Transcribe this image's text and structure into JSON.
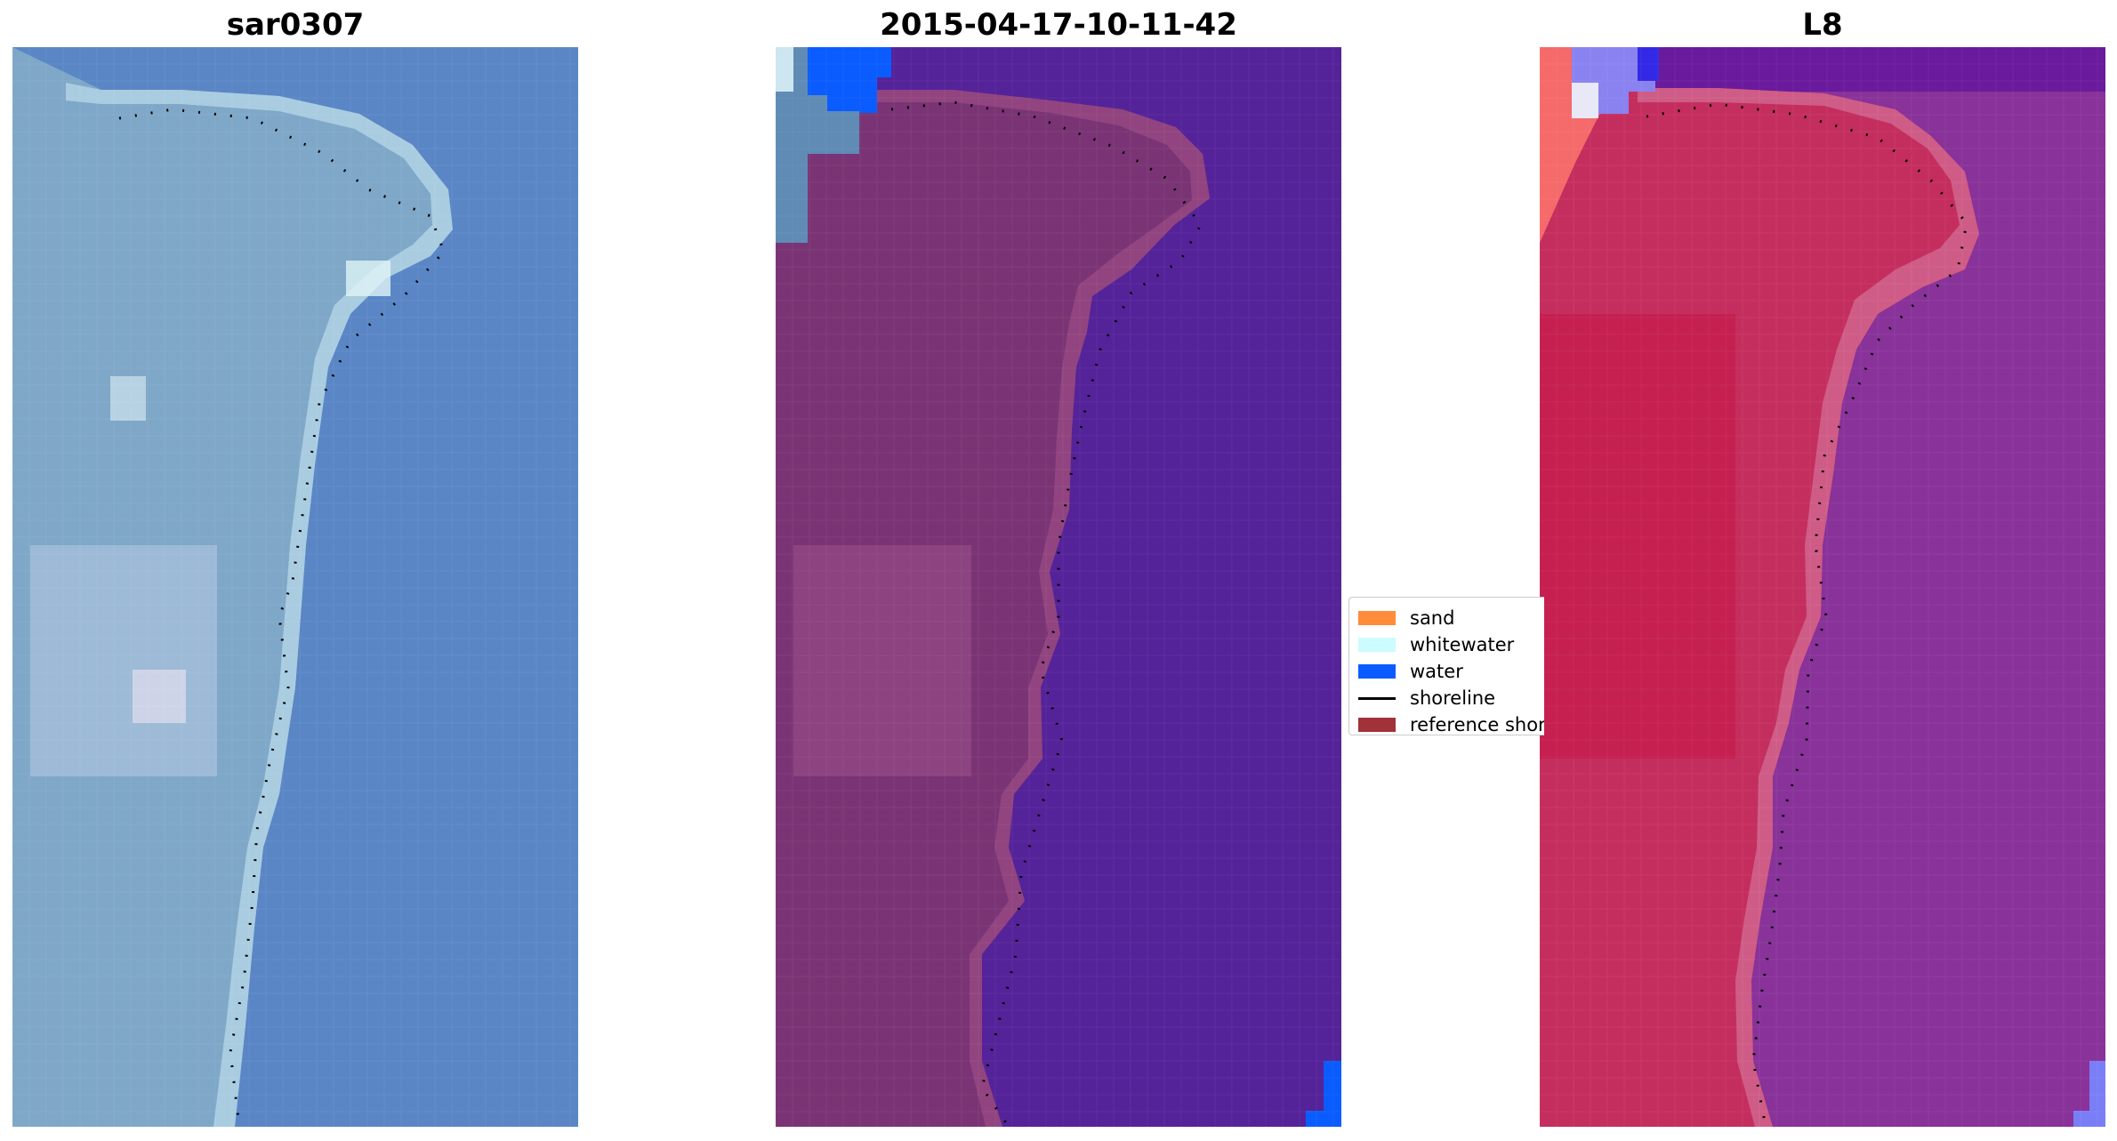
{
  "panels": [
    {
      "title": "sar0307"
    },
    {
      "title": "2015-04-17-10-11-42"
    },
    {
      "title": "L8"
    }
  ],
  "legend": {
    "items": [
      {
        "label": "sand",
        "type": "patch",
        "color": "#ff8c3a"
      },
      {
        "label": "whitewater",
        "type": "patch",
        "color": "#ccfcff"
      },
      {
        "label": "water",
        "type": "patch",
        "color": "#0a5cff"
      },
      {
        "label": "shoreline",
        "type": "line",
        "color": "#000000"
      },
      {
        "label": "reference shoreline",
        "type": "patch",
        "color": "#a13239"
      }
    ]
  },
  "colors": {
    "rgb_land": "#7fa8c8",
    "rgb_water": "#5a86c6",
    "classified_land": "#7a3475",
    "classified_water": "#552399",
    "classified_water_class": "#0a5cff",
    "falsecolor_land": "#c42e5e",
    "falsecolor_water": "#88329a",
    "shoreline_dots": "#000000"
  },
  "icons": {
    "legend_line": "line-icon"
  }
}
